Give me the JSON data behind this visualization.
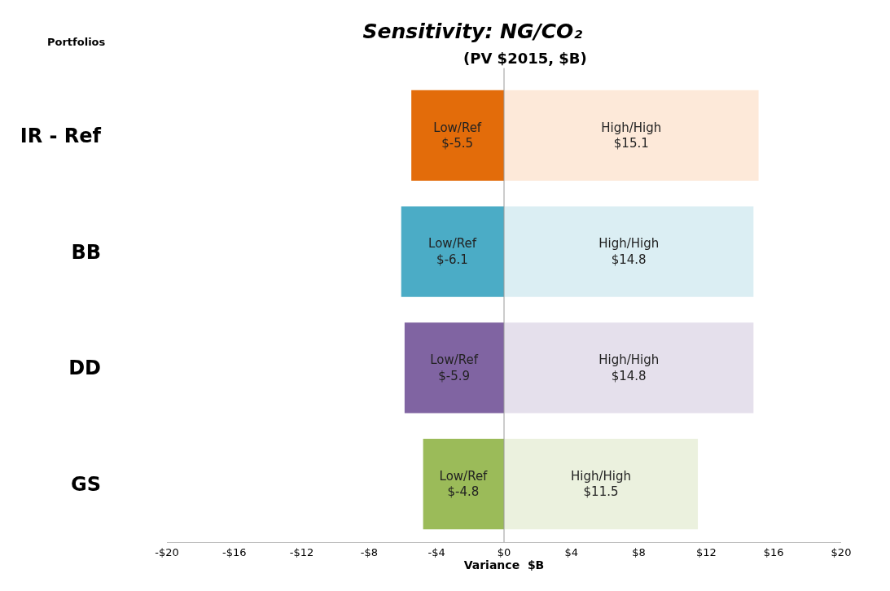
{
  "chart_data": {
    "type": "bar",
    "orientation": "horizontal",
    "stacked": true,
    "title": "Sensitivity: NG/CO₂",
    "subtitle": "(PV $2015, $B)",
    "xlabel": "Variance  $B",
    "ylabel": "Portfolios",
    "categories": [
      "IR - Ref",
      "BB",
      "DD",
      "GS"
    ],
    "series": [
      {
        "name": "Low/Ref",
        "colors": [
          "#e36c0a",
          "#4bacc6",
          "#8064a2",
          "#9bbb59"
        ],
        "values": [
          -5.5,
          -6.1,
          -5.9,
          -4.8
        ],
        "value_labels": [
          "$-5.5",
          "$-6.1",
          "$-5.9",
          "$-4.8"
        ]
      },
      {
        "name": "High/High",
        "colors": [
          "#fde9d9",
          "#dbeef3",
          "#e5e0ec",
          "#ebf1de"
        ],
        "values": [
          15.1,
          14.8,
          14.8,
          11.5
        ],
        "value_labels": [
          "$15.1",
          "$14.8",
          "$14.8",
          "$11.5"
        ]
      }
    ],
    "xlim": [
      -20,
      20
    ],
    "xticks": [
      {
        "value": -20,
        "label": "-$20"
      },
      {
        "value": -16,
        "label": "-$16"
      },
      {
        "value": -12,
        "label": "-$12"
      },
      {
        "value": -8,
        "label": "-$8"
      },
      {
        "value": -4,
        "label": "-$4"
      },
      {
        "value": 0,
        "label": "$0"
      },
      {
        "value": 4,
        "label": "$4"
      },
      {
        "value": 8,
        "label": "$8"
      },
      {
        "value": 12,
        "label": "$12"
      },
      {
        "value": 16,
        "label": "$16"
      },
      {
        "value": 20,
        "label": "$20"
      }
    ],
    "ref_lines": [
      {
        "axis": "x",
        "value": 0,
        "color": "#999999"
      }
    ],
    "legend": false
  }
}
